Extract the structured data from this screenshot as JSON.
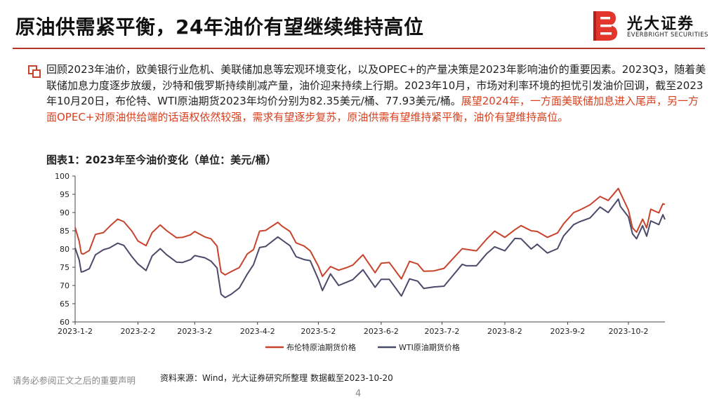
{
  "title": "原油供需紧平衡，24年油价有望继续维持高位",
  "logo": {
    "cn": "光大证券",
    "en": "EVERBRIGHT SECURITIES"
  },
  "body": {
    "normal": "回顾2023年油价，欧美银行业危机、美联储加息等宏观环境变化，以及OPEC+的产量决策是2023年影响油价的重要因素。2023Q3，随着美联储加息力度逐步放缓，沙特和俄罗斯持续削减产量，油价迎来持续上行期。2023年10月，市场对利率环境的担忧引发油价回调，截至2023年10月20日，布伦特、WTI原油期货2023年均价分别为82.35美元/桶、77.93美元/桶。",
    "highlight": "展望2024年，一方面美联储加息进入尾声，另一方面OPEC+对原油供给端的话语权依然较强，需求有望逐步复苏，原油供需有望维持紧平衡，油价有望维持高位。"
  },
  "figure_title": "图表1：2023年至今油价变化（单位：美元/桶）",
  "footer": {
    "disclaimer": "请务必参阅正文之后的重要声明",
    "source": "资料来源：Wind，光大证券研究所整理   数据截至2023-10-20",
    "page": "4"
  },
  "colors": {
    "brent": "#c8432c",
    "wti": "#4a4a6a",
    "accent": "#b7352a"
  },
  "chart_data": {
    "type": "line",
    "title": "",
    "xlabel": "",
    "ylabel": "",
    "ylim": [
      60,
      100
    ],
    "yticks": [
      60,
      65,
      70,
      75,
      80,
      85,
      90,
      95,
      100
    ],
    "xlim": [
      "2023-01-02",
      "2023-10-20"
    ],
    "xticks": [
      "2023-1-2",
      "2023-2-2",
      "2023-3-2",
      "2023-4-2",
      "2023-5-2",
      "2023-6-2",
      "2023-7-2",
      "2023-8-2",
      "2023-9-2",
      "2023-10-2"
    ],
    "grid": false,
    "legend": "bottom",
    "series": [
      {
        "name": "布伦特原油期货价格",
        "color": "#c8432c",
        "points": [
          [
            "2023-01-02",
            85.9
          ],
          [
            "2023-01-04",
            82.1
          ],
          [
            "2023-01-05",
            78.8
          ],
          [
            "2023-01-06",
            78.6
          ],
          [
            "2023-01-09",
            79.6
          ],
          [
            "2023-01-12",
            84.0
          ],
          [
            "2023-01-16",
            84.5
          ],
          [
            "2023-01-19",
            86.2
          ],
          [
            "2023-01-23",
            88.2
          ],
          [
            "2023-01-26",
            87.5
          ],
          [
            "2023-01-30",
            84.9
          ],
          [
            "2023-02-02",
            82.2
          ],
          [
            "2023-02-06",
            80.9
          ],
          [
            "2023-02-09",
            84.5
          ],
          [
            "2023-02-13",
            86.6
          ],
          [
            "2023-02-16",
            85.1
          ],
          [
            "2023-02-21",
            83.1
          ],
          [
            "2023-02-24",
            83.2
          ],
          [
            "2023-02-28",
            83.9
          ],
          [
            "2023-03-02",
            84.8
          ],
          [
            "2023-03-07",
            83.3
          ],
          [
            "2023-03-10",
            82.8
          ],
          [
            "2023-03-13",
            80.8
          ],
          [
            "2023-03-15",
            73.7
          ],
          [
            "2023-03-17",
            72.9
          ],
          [
            "2023-03-20",
            73.8
          ],
          [
            "2023-03-24",
            74.9
          ],
          [
            "2023-03-28",
            78.7
          ],
          [
            "2023-03-31",
            79.8
          ],
          [
            "2023-04-03",
            84.9
          ],
          [
            "2023-04-06",
            85.1
          ],
          [
            "2023-04-12",
            87.3
          ],
          [
            "2023-04-14",
            86.3
          ],
          [
            "2023-04-18",
            84.8
          ],
          [
            "2023-04-21",
            81.7
          ],
          [
            "2023-04-25",
            80.8
          ],
          [
            "2023-04-28",
            79.5
          ],
          [
            "2023-05-02",
            75.3
          ],
          [
            "2023-05-04",
            72.5
          ],
          [
            "2023-05-08",
            75.2
          ],
          [
            "2023-05-12",
            74.2
          ],
          [
            "2023-05-16",
            74.9
          ],
          [
            "2023-05-19",
            75.6
          ],
          [
            "2023-05-24",
            78.4
          ],
          [
            "2023-05-30",
            73.5
          ],
          [
            "2023-06-02",
            76.1
          ],
          [
            "2023-06-06",
            76.3
          ],
          [
            "2023-06-12",
            71.8
          ],
          [
            "2023-06-16",
            76.6
          ],
          [
            "2023-06-20",
            75.9
          ],
          [
            "2023-06-23",
            73.9
          ],
          [
            "2023-06-28",
            74.0
          ],
          [
            "2023-07-03",
            74.7
          ],
          [
            "2023-07-06",
            76.5
          ],
          [
            "2023-07-12",
            80.1
          ],
          [
            "2023-07-14",
            79.9
          ],
          [
            "2023-07-19",
            79.5
          ],
          [
            "2023-07-24",
            82.7
          ],
          [
            "2023-07-28",
            84.9
          ],
          [
            "2023-08-02",
            83.2
          ],
          [
            "2023-08-07",
            85.3
          ],
          [
            "2023-08-10",
            86.4
          ],
          [
            "2023-08-15",
            85.0
          ],
          [
            "2023-08-18",
            84.8
          ],
          [
            "2023-08-23",
            83.2
          ],
          [
            "2023-08-28",
            84.4
          ],
          [
            "2023-08-31",
            86.9
          ],
          [
            "2023-09-05",
            90.0
          ],
          [
            "2023-09-08",
            90.7
          ],
          [
            "2023-09-13",
            92.1
          ],
          [
            "2023-09-18",
            94.4
          ],
          [
            "2023-09-22",
            93.3
          ],
          [
            "2023-09-27",
            96.6
          ],
          [
            "2023-09-28",
            95.4
          ],
          [
            "2023-10-02",
            90.7
          ],
          [
            "2023-10-04",
            85.8
          ],
          [
            "2023-10-06",
            84.6
          ],
          [
            "2023-10-09",
            88.2
          ],
          [
            "2023-10-11",
            85.8
          ],
          [
            "2023-10-13",
            90.9
          ],
          [
            "2023-10-17",
            89.9
          ],
          [
            "2023-10-19",
            92.4
          ],
          [
            "2023-10-20",
            92.2
          ]
        ]
      },
      {
        "name": "WTI原油期货价格",
        "color": "#4a4a6a",
        "points": [
          [
            "2023-01-02",
            80.3
          ],
          [
            "2023-01-04",
            77.0
          ],
          [
            "2023-01-05",
            73.7
          ],
          [
            "2023-01-06",
            73.8
          ],
          [
            "2023-01-09",
            74.6
          ],
          [
            "2023-01-12",
            78.4
          ],
          [
            "2023-01-16",
            79.8
          ],
          [
            "2023-01-19",
            80.3
          ],
          [
            "2023-01-23",
            81.6
          ],
          [
            "2023-01-26",
            81.0
          ],
          [
            "2023-01-30",
            77.9
          ],
          [
            "2023-02-02",
            75.9
          ],
          [
            "2023-02-06",
            74.1
          ],
          [
            "2023-02-09",
            78.1
          ],
          [
            "2023-02-13",
            80.1
          ],
          [
            "2023-02-16",
            78.5
          ],
          [
            "2023-02-21",
            76.4
          ],
          [
            "2023-02-24",
            76.3
          ],
          [
            "2023-02-28",
            77.1
          ],
          [
            "2023-03-02",
            78.2
          ],
          [
            "2023-03-07",
            77.6
          ],
          [
            "2023-03-10",
            76.7
          ],
          [
            "2023-03-13",
            74.8
          ],
          [
            "2023-03-15",
            67.6
          ],
          [
            "2023-03-17",
            66.7
          ],
          [
            "2023-03-20",
            67.6
          ],
          [
            "2023-03-24",
            69.3
          ],
          [
            "2023-03-28",
            73.2
          ],
          [
            "2023-03-31",
            75.7
          ],
          [
            "2023-04-03",
            80.4
          ],
          [
            "2023-04-06",
            80.7
          ],
          [
            "2023-04-12",
            83.3
          ],
          [
            "2023-04-14",
            82.5
          ],
          [
            "2023-04-18",
            80.9
          ],
          [
            "2023-04-21",
            77.9
          ],
          [
            "2023-04-25",
            77.1
          ],
          [
            "2023-04-28",
            76.8
          ],
          [
            "2023-05-02",
            71.7
          ],
          [
            "2023-05-04",
            68.6
          ],
          [
            "2023-05-08",
            73.2
          ],
          [
            "2023-05-12",
            70.0
          ],
          [
            "2023-05-16",
            70.9
          ],
          [
            "2023-05-19",
            71.6
          ],
          [
            "2023-05-24",
            74.3
          ],
          [
            "2023-05-30",
            69.5
          ],
          [
            "2023-06-02",
            71.7
          ],
          [
            "2023-06-06",
            71.7
          ],
          [
            "2023-06-12",
            67.1
          ],
          [
            "2023-06-16",
            71.8
          ],
          [
            "2023-06-20",
            71.2
          ],
          [
            "2023-06-23",
            69.2
          ],
          [
            "2023-06-28",
            69.6
          ],
          [
            "2023-07-03",
            69.8
          ],
          [
            "2023-07-06",
            71.8
          ],
          [
            "2023-07-12",
            75.8
          ],
          [
            "2023-07-14",
            75.4
          ],
          [
            "2023-07-19",
            75.4
          ],
          [
            "2023-07-24",
            78.7
          ],
          [
            "2023-07-28",
            80.6
          ],
          [
            "2023-08-02",
            79.5
          ],
          [
            "2023-08-07",
            82.9
          ],
          [
            "2023-08-10",
            82.8
          ],
          [
            "2023-08-15",
            80.0
          ],
          [
            "2023-08-18",
            81.3
          ],
          [
            "2023-08-23",
            78.9
          ],
          [
            "2023-08-28",
            80.1
          ],
          [
            "2023-08-31",
            83.6
          ],
          [
            "2023-09-05",
            86.7
          ],
          [
            "2023-09-08",
            87.5
          ],
          [
            "2023-09-13",
            88.5
          ],
          [
            "2023-09-18",
            91.5
          ],
          [
            "2023-09-22",
            90.0
          ],
          [
            "2023-09-27",
            93.7
          ],
          [
            "2023-09-28",
            91.7
          ],
          [
            "2023-10-02",
            88.8
          ],
          [
            "2023-10-04",
            84.2
          ],
          [
            "2023-10-06",
            82.8
          ],
          [
            "2023-10-09",
            86.4
          ],
          [
            "2023-10-11",
            83.5
          ],
          [
            "2023-10-13",
            87.7
          ],
          [
            "2023-10-17",
            86.7
          ],
          [
            "2023-10-19",
            89.4
          ],
          [
            "2023-10-20",
            88.1
          ]
        ]
      }
    ]
  }
}
